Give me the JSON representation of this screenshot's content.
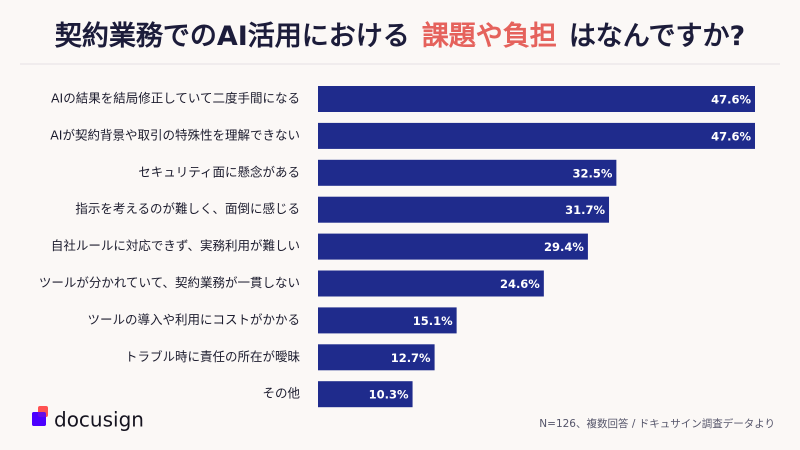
{
  "chart_data": {
    "type": "bar",
    "orientation": "horizontal",
    "title": [
      "契約業務でのAI活用における",
      "課題や負担",
      "はなんですか?"
    ],
    "title_color": "#1c1c3a",
    "title_highlight_color": "#e5625c",
    "categories": [
      "AIの結果を結局修正していて二度手間になる",
      "AIが契約背景や取引の特殊性を理解できない",
      "セキュリティ面に懸念がある",
      "指示を考えるのが難しく、面倒に感じる",
      "自社ルールに対応できず、実務利用が難しい",
      "ツールが分かれていて、契約業務が一貫しない",
      "ツールの導入や利用にコストがかかる",
      "トラブル時に責任の所在が曖昧",
      "その他"
    ],
    "values": [
      47.6,
      47.6,
      32.5,
      31.7,
      29.4,
      24.6,
      15.1,
      12.7,
      10.3
    ],
    "value_labels": [
      "47.6%",
      "47.6%",
      "32.5%",
      "31.7%",
      "29.4%",
      "24.6%",
      "15.1%",
      "12.7%",
      "10.3%"
    ],
    "color": "#1f2b8c",
    "footnote": "N=126、複数回答 / ドキュサイン調査データより",
    "brand": "docusign"
  }
}
